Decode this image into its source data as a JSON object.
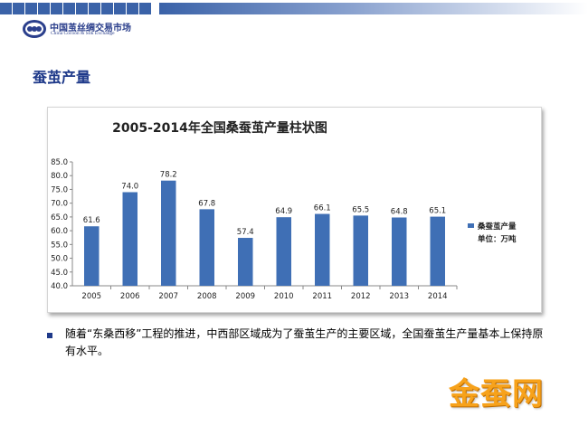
{
  "header": {
    "logo_cn": "中国茧丝绸交易市场",
    "logo_en": "China Cocoon & Silk Exchange"
  },
  "slide_title": "蚕茧产量",
  "chart_data": {
    "type": "bar",
    "title": "2005-2014年全国桑蚕茧产量柱状图",
    "categories": [
      "2005",
      "2006",
      "2007",
      "2008",
      "2009",
      "2010",
      "2011",
      "2012",
      "2013",
      "2014"
    ],
    "series": [
      {
        "name": "桑蚕茧产量",
        "values": [
          61.6,
          74.0,
          78.2,
          67.8,
          57.4,
          64.9,
          66.1,
          65.5,
          64.8,
          65.1
        ],
        "color": "#3f6fb5"
      }
    ],
    "data_labels": [
      "61.6",
      "74.0",
      "78.2",
      "67.8",
      "57.4",
      "64.9",
      "66.1",
      "65.5",
      "64.8",
      "65.1"
    ],
    "y_ticks": [
      "40.0",
      "45.0",
      "50.0",
      "55.0",
      "60.0",
      "65.0",
      "70.0",
      "75.0",
      "80.0",
      "85.0"
    ],
    "ylim": [
      40,
      85
    ],
    "unit_label": "单位：万吨",
    "legend_position": "right",
    "grid": false
  },
  "bullet_text": "随着“东桑西移”工程的推进，中西部区域成为了蚕茧生产的主要区域，全国蚕茧生产量基本上保持原有水平。",
  "brand_watermark": "金蚕网"
}
